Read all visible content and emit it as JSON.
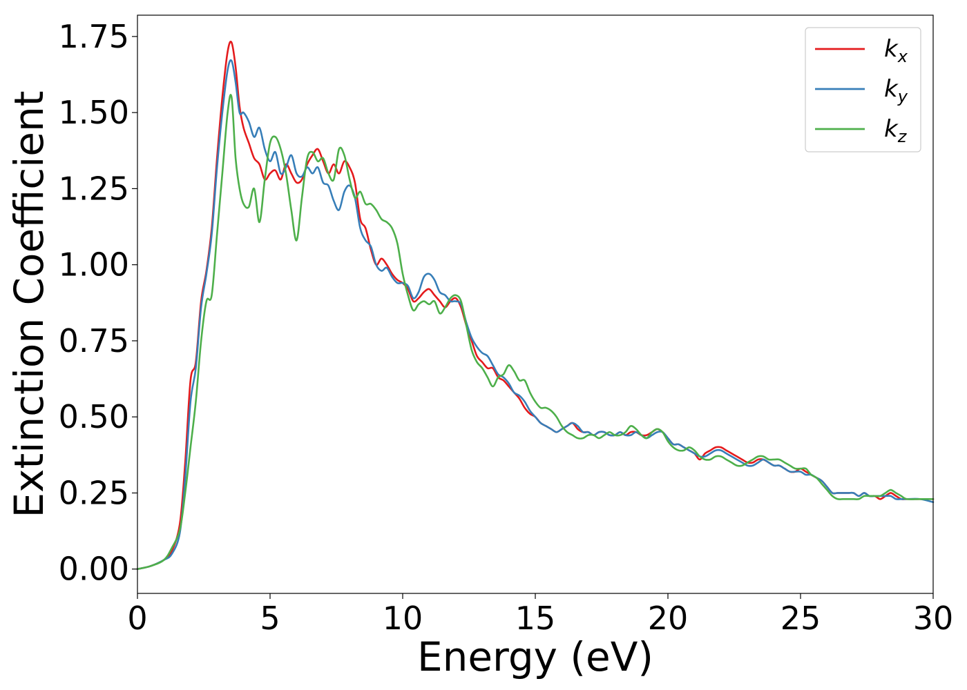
{
  "chart_data": {
    "type": "line",
    "title": "",
    "xlabel": "Energy (eV)",
    "ylabel": "Extinction Coefficient",
    "xlim": [
      0,
      30
    ],
    "ylim": [
      -0.08,
      1.82
    ],
    "xticks": [
      0,
      5,
      10,
      15,
      20,
      25,
      30
    ],
    "xtick_labels": [
      "0",
      "5",
      "10",
      "15",
      "20",
      "25",
      "30"
    ],
    "yticks": [
      0,
      0.25,
      0.5,
      0.75,
      1.0,
      1.25,
      1.5,
      1.75
    ],
    "ytick_labels": [
      "0.00",
      "0.25",
      "0.50",
      "0.75",
      "1.00",
      "1.25",
      "1.50",
      "1.75"
    ],
    "grid": false,
    "legend": {
      "position": "top-right"
    },
    "series": [
      {
        "name": "k",
        "subscript": "x",
        "color": "#e41a1c",
        "x": [
          0,
          0.5,
          1.0,
          1.3,
          1.6,
          1.8,
          2.0,
          2.2,
          2.4,
          2.6,
          2.8,
          3.0,
          3.2,
          3.4,
          3.55,
          3.7,
          3.85,
          4.0,
          4.2,
          4.4,
          4.6,
          4.8,
          5.0,
          5.2,
          5.4,
          5.6,
          5.8,
          6.0,
          6.2,
          6.4,
          6.6,
          6.8,
          7.0,
          7.2,
          7.4,
          7.6,
          7.8,
          8.0,
          8.2,
          8.4,
          8.6,
          8.8,
          9.0,
          9.2,
          9.4,
          9.6,
          9.8,
          10.0,
          10.2,
          10.4,
          10.6,
          10.8,
          11.0,
          11.2,
          11.4,
          11.6,
          11.8,
          12.0,
          12.2,
          12.4,
          12.6,
          12.8,
          13.0,
          13.2,
          13.4,
          13.6,
          13.8,
          14.0,
          14.2,
          14.4,
          14.6,
          14.8,
          15.0,
          15.2,
          15.4,
          15.6,
          15.8,
          16.0,
          16.2,
          16.4,
          16.6,
          16.8,
          17.0,
          17.2,
          17.4,
          17.6,
          17.8,
          18.0,
          18.2,
          18.4,
          18.6,
          18.8,
          19.0,
          19.2,
          19.4,
          19.6,
          19.8,
          20.0,
          20.2,
          20.4,
          20.6,
          20.8,
          21.0,
          21.2,
          21.4,
          21.6,
          21.8,
          22.0,
          22.2,
          22.4,
          22.6,
          22.8,
          23.0,
          23.2,
          23.4,
          23.6,
          23.8,
          24.0,
          24.2,
          24.4,
          24.6,
          24.8,
          25.0,
          25.2,
          25.4,
          25.6,
          25.8,
          26.0,
          26.2,
          26.4,
          26.6,
          26.8,
          27.0,
          27.2,
          27.4,
          27.6,
          27.8,
          28.0,
          28.2,
          28.4,
          28.6,
          28.8,
          29.0,
          29.5,
          30.0
        ],
        "y": [
          0.0,
          0.01,
          0.03,
          0.06,
          0.15,
          0.35,
          0.62,
          0.68,
          0.88,
          0.98,
          1.12,
          1.35,
          1.55,
          1.7,
          1.73,
          1.65,
          1.52,
          1.45,
          1.4,
          1.35,
          1.33,
          1.28,
          1.3,
          1.31,
          1.28,
          1.33,
          1.3,
          1.27,
          1.28,
          1.33,
          1.36,
          1.38,
          1.34,
          1.3,
          1.33,
          1.3,
          1.34,
          1.32,
          1.27,
          1.15,
          1.12,
          1.05,
          1.0,
          1.02,
          1.0,
          0.97,
          0.95,
          0.94,
          0.92,
          0.88,
          0.89,
          0.91,
          0.92,
          0.9,
          0.88,
          0.86,
          0.88,
          0.89,
          0.86,
          0.8,
          0.75,
          0.7,
          0.68,
          0.66,
          0.66,
          0.63,
          0.62,
          0.6,
          0.58,
          0.56,
          0.53,
          0.51,
          0.5,
          0.48,
          0.47,
          0.46,
          0.45,
          0.46,
          0.47,
          0.48,
          0.46,
          0.45,
          0.45,
          0.44,
          0.45,
          0.45,
          0.44,
          0.44,
          0.45,
          0.44,
          0.45,
          0.45,
          0.44,
          0.44,
          0.45,
          0.46,
          0.45,
          0.43,
          0.41,
          0.41,
          0.4,
          0.39,
          0.38,
          0.36,
          0.38,
          0.39,
          0.4,
          0.4,
          0.39,
          0.38,
          0.37,
          0.36,
          0.35,
          0.35,
          0.36,
          0.36,
          0.35,
          0.34,
          0.34,
          0.33,
          0.32,
          0.32,
          0.33,
          0.32,
          0.31,
          0.3,
          0.29,
          0.27,
          0.25,
          0.25,
          0.25,
          0.25,
          0.25,
          0.24,
          0.25,
          0.24,
          0.24,
          0.23,
          0.24,
          0.25,
          0.24,
          0.23,
          0.23,
          0.23,
          0.23
        ]
      },
      {
        "name": "k",
        "subscript": "y",
        "color": "#377eb8",
        "x": [
          0,
          0.5,
          1.0,
          1.3,
          1.6,
          1.8,
          2.0,
          2.2,
          2.4,
          2.6,
          2.8,
          3.0,
          3.2,
          3.4,
          3.55,
          3.7,
          3.85,
          4.0,
          4.2,
          4.4,
          4.6,
          4.8,
          5.0,
          5.2,
          5.4,
          5.6,
          5.8,
          6.0,
          6.2,
          6.4,
          6.6,
          6.8,
          7.0,
          7.2,
          7.4,
          7.6,
          7.8,
          8.0,
          8.2,
          8.4,
          8.6,
          8.8,
          9.0,
          9.2,
          9.4,
          9.6,
          9.8,
          10.0,
          10.2,
          10.4,
          10.6,
          10.8,
          11.0,
          11.2,
          11.4,
          11.6,
          11.8,
          12.0,
          12.2,
          12.4,
          12.6,
          12.8,
          13.0,
          13.2,
          13.4,
          13.6,
          13.8,
          14.0,
          14.2,
          14.4,
          14.6,
          14.8,
          15.0,
          15.2,
          15.4,
          15.6,
          15.8,
          16.0,
          16.2,
          16.4,
          16.6,
          16.8,
          17.0,
          17.2,
          17.4,
          17.6,
          17.8,
          18.0,
          18.2,
          18.4,
          18.6,
          18.8,
          19.0,
          19.2,
          19.4,
          19.6,
          19.8,
          20.0,
          20.2,
          20.4,
          20.6,
          20.8,
          21.0,
          21.2,
          21.4,
          21.6,
          21.8,
          22.0,
          22.2,
          22.4,
          22.6,
          22.8,
          23.0,
          23.2,
          23.4,
          23.6,
          23.8,
          24.0,
          24.2,
          24.4,
          24.6,
          24.8,
          25.0,
          25.2,
          25.4,
          25.6,
          25.8,
          26.0,
          26.2,
          26.4,
          26.6,
          26.8,
          27.0,
          27.2,
          27.4,
          27.6,
          27.8,
          28.0,
          28.2,
          28.4,
          28.6,
          28.8,
          29.0,
          29.5,
          30.0
        ],
        "y": [
          0.0,
          0.01,
          0.03,
          0.05,
          0.12,
          0.3,
          0.55,
          0.66,
          0.86,
          0.97,
          1.1,
          1.32,
          1.5,
          1.64,
          1.67,
          1.6,
          1.5,
          1.5,
          1.47,
          1.42,
          1.45,
          1.38,
          1.34,
          1.37,
          1.3,
          1.32,
          1.36,
          1.3,
          1.29,
          1.32,
          1.3,
          1.32,
          1.27,
          1.26,
          1.21,
          1.18,
          1.24,
          1.26,
          1.22,
          1.12,
          1.08,
          1.06,
          1.0,
          0.98,
          0.99,
          0.96,
          0.94,
          0.94,
          0.93,
          0.89,
          0.91,
          0.96,
          0.97,
          0.95,
          0.91,
          0.9,
          0.88,
          0.88,
          0.87,
          0.81,
          0.76,
          0.73,
          0.71,
          0.7,
          0.67,
          0.64,
          0.63,
          0.61,
          0.58,
          0.57,
          0.55,
          0.52,
          0.5,
          0.48,
          0.47,
          0.46,
          0.45,
          0.46,
          0.47,
          0.48,
          0.47,
          0.45,
          0.45,
          0.44,
          0.45,
          0.45,
          0.44,
          0.44,
          0.45,
          0.44,
          0.44,
          0.45,
          0.44,
          0.43,
          0.44,
          0.45,
          0.45,
          0.43,
          0.41,
          0.41,
          0.4,
          0.39,
          0.38,
          0.37,
          0.37,
          0.38,
          0.39,
          0.39,
          0.38,
          0.37,
          0.36,
          0.35,
          0.34,
          0.34,
          0.35,
          0.36,
          0.35,
          0.34,
          0.34,
          0.33,
          0.32,
          0.32,
          0.32,
          0.31,
          0.31,
          0.3,
          0.29,
          0.27,
          0.25,
          0.25,
          0.25,
          0.25,
          0.25,
          0.24,
          0.25,
          0.24,
          0.24,
          0.24,
          0.24,
          0.24,
          0.23,
          0.23,
          0.23,
          0.23,
          0.22
        ]
      },
      {
        "name": "k",
        "subscript": "z",
        "color": "#4daf4a",
        "x": [
          0,
          0.5,
          1.0,
          1.3,
          1.6,
          1.8,
          2.0,
          2.2,
          2.4,
          2.6,
          2.8,
          3.0,
          3.2,
          3.4,
          3.55,
          3.7,
          3.85,
          4.0,
          4.2,
          4.4,
          4.6,
          4.8,
          5.0,
          5.2,
          5.4,
          5.6,
          5.8,
          6.0,
          6.2,
          6.4,
          6.6,
          6.8,
          7.0,
          7.2,
          7.4,
          7.6,
          7.8,
          8.0,
          8.2,
          8.4,
          8.6,
          8.8,
          9.0,
          9.2,
          9.4,
          9.6,
          9.8,
          10.0,
          10.2,
          10.4,
          10.6,
          10.8,
          11.0,
          11.2,
          11.4,
          11.6,
          11.8,
          12.0,
          12.2,
          12.4,
          12.6,
          12.8,
          13.0,
          13.2,
          13.4,
          13.6,
          13.8,
          14.0,
          14.2,
          14.4,
          14.6,
          14.8,
          15.0,
          15.2,
          15.4,
          15.6,
          15.8,
          16.0,
          16.2,
          16.4,
          16.6,
          16.8,
          17.0,
          17.2,
          17.4,
          17.6,
          17.8,
          18.0,
          18.2,
          18.4,
          18.6,
          18.8,
          19.0,
          19.2,
          19.4,
          19.6,
          19.8,
          20.0,
          20.2,
          20.4,
          20.6,
          20.8,
          21.0,
          21.2,
          21.4,
          21.6,
          21.8,
          22.0,
          22.2,
          22.4,
          22.6,
          22.8,
          23.0,
          23.2,
          23.4,
          23.6,
          23.8,
          24.0,
          24.2,
          24.4,
          24.6,
          24.8,
          25.0,
          25.2,
          25.4,
          25.6,
          25.8,
          26.0,
          26.2,
          26.4,
          26.6,
          26.8,
          27.0,
          27.2,
          27.4,
          27.6,
          27.8,
          28.0,
          28.2,
          28.4,
          28.6,
          28.8,
          29.0,
          29.5,
          30.0
        ],
        "y": [
          0.0,
          0.01,
          0.03,
          0.07,
          0.13,
          0.25,
          0.4,
          0.55,
          0.75,
          0.88,
          0.9,
          1.1,
          1.3,
          1.5,
          1.55,
          1.35,
          1.25,
          1.2,
          1.19,
          1.25,
          1.14,
          1.28,
          1.4,
          1.42,
          1.38,
          1.3,
          1.18,
          1.08,
          1.22,
          1.35,
          1.37,
          1.34,
          1.35,
          1.3,
          1.28,
          1.38,
          1.36,
          1.28,
          1.22,
          1.24,
          1.2,
          1.2,
          1.18,
          1.15,
          1.14,
          1.12,
          1.07,
          0.97,
          0.9,
          0.85,
          0.87,
          0.88,
          0.87,
          0.88,
          0.84,
          0.86,
          0.89,
          0.9,
          0.88,
          0.8,
          0.72,
          0.68,
          0.66,
          0.63,
          0.6,
          0.63,
          0.64,
          0.67,
          0.65,
          0.62,
          0.62,
          0.58,
          0.55,
          0.53,
          0.53,
          0.52,
          0.5,
          0.47,
          0.45,
          0.44,
          0.43,
          0.43,
          0.44,
          0.44,
          0.43,
          0.44,
          0.45,
          0.44,
          0.44,
          0.45,
          0.47,
          0.46,
          0.44,
          0.43,
          0.45,
          0.46,
          0.45,
          0.42,
          0.4,
          0.39,
          0.39,
          0.4,
          0.39,
          0.37,
          0.36,
          0.36,
          0.37,
          0.37,
          0.36,
          0.35,
          0.34,
          0.34,
          0.35,
          0.36,
          0.37,
          0.37,
          0.36,
          0.36,
          0.36,
          0.35,
          0.34,
          0.33,
          0.33,
          0.33,
          0.31,
          0.3,
          0.28,
          0.26,
          0.24,
          0.23,
          0.23,
          0.23,
          0.23,
          0.23,
          0.24,
          0.24,
          0.24,
          0.24,
          0.25,
          0.26,
          0.25,
          0.24,
          0.23,
          0.23,
          0.23
        ]
      }
    ]
  }
}
